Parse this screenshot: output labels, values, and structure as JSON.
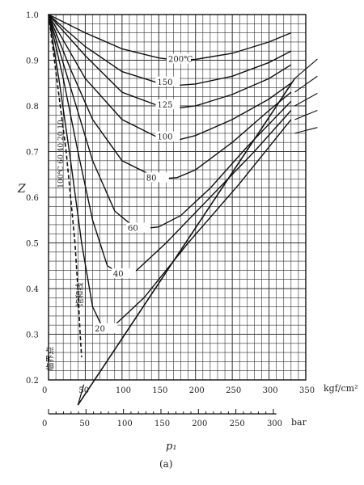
{
  "chart_data": {
    "type": "line",
    "ylabel": "Z",
    "xunit_top": "kgf/cm²",
    "xunit_bottom": "bar",
    "xlabel": "p₁",
    "caption": "(a)",
    "xlim": [
      0,
      350
    ],
    "ylim": [
      0.2,
      1.0
    ],
    "x_ticks_kgf": [
      "0",
      "50",
      "100",
      "150",
      "200",
      "250",
      "300",
      "350"
    ],
    "x_ticks_bar": [
      "0",
      "50",
      "100",
      "150",
      "200",
      "250",
      "300"
    ],
    "y_ticks": [
      "0.2",
      "0.3",
      "0.4",
      "0.5",
      "0.6",
      "0.7",
      "0.8",
      "0.9",
      "1.0"
    ],
    "annotations": [
      "临界点",
      "饱和线"
    ],
    "series": [
      {
        "name": "200℃",
        "points": [
          [
            0,
            1.0
          ],
          [
            50,
            0.96
          ],
          [
            100,
            0.925
          ],
          [
            150,
            0.905
          ],
          [
            175,
            0.9
          ],
          [
            200,
            0.902
          ],
          [
            250,
            0.915
          ],
          [
            300,
            0.94
          ],
          [
            330,
            0.96
          ]
        ]
      },
      {
        "name": "150",
        "points": [
          [
            0,
            1.0
          ],
          [
            50,
            0.93
          ],
          [
            100,
            0.875
          ],
          [
            150,
            0.85
          ],
          [
            175,
            0.845
          ],
          [
            200,
            0.848
          ],
          [
            250,
            0.865
          ],
          [
            300,
            0.895
          ],
          [
            330,
            0.92
          ]
        ]
      },
      {
        "name": "125",
        "points": [
          [
            0,
            1.0
          ],
          [
            50,
            0.91
          ],
          [
            100,
            0.83
          ],
          [
            150,
            0.8
          ],
          [
            175,
            0.795
          ],
          [
            200,
            0.8
          ],
          [
            250,
            0.825
          ],
          [
            300,
            0.86
          ],
          [
            330,
            0.89
          ]
        ]
      },
      {
        "name": "100",
        "points": [
          [
            0,
            1.0
          ],
          [
            50,
            0.86
          ],
          [
            100,
            0.77
          ],
          [
            150,
            0.73
          ],
          [
            175,
            0.725
          ],
          [
            200,
            0.735
          ],
          [
            250,
            0.77
          ],
          [
            300,
            0.815
          ],
          [
            330,
            0.85
          ]
        ]
      },
      {
        "name": "80",
        "points": [
          [
            0,
            1.0
          ],
          [
            30,
            0.88
          ],
          [
            60,
            0.77
          ],
          [
            100,
            0.68
          ],
          [
            150,
            0.64
          ],
          [
            175,
            0.643
          ],
          [
            200,
            0.66
          ],
          [
            250,
            0.72
          ],
          [
            300,
            0.79
          ],
          [
            330,
            0.83
          ]
        ]
      },
      {
        "name": "60",
        "points": [
          [
            0,
            1.0
          ],
          [
            30,
            0.84
          ],
          [
            60,
            0.68
          ],
          [
            90,
            0.57
          ],
          [
            120,
            0.53
          ],
          [
            150,
            0.535
          ],
          [
            180,
            0.56
          ],
          [
            220,
            0.62
          ],
          [
            270,
            0.71
          ],
          [
            330,
            0.81
          ]
        ]
      },
      {
        "name": "40",
        "points": [
          [
            0,
            1.0
          ],
          [
            20,
            0.86
          ],
          [
            40,
            0.7
          ],
          [
            60,
            0.55
          ],
          [
            80,
            0.45
          ],
          [
            100,
            0.43
          ],
          [
            120,
            0.44
          ],
          [
            160,
            0.5
          ],
          [
            220,
            0.6
          ],
          [
            280,
            0.7
          ],
          [
            330,
            0.79
          ]
        ]
      },
      {
        "name": "20",
        "points": [
          [
            0,
            1.0
          ],
          [
            15,
            0.85
          ],
          [
            30,
            0.68
          ],
          [
            45,
            0.5
          ],
          [
            60,
            0.36
          ],
          [
            75,
            0.31
          ],
          [
            90,
            0.32
          ],
          [
            130,
            0.38
          ],
          [
            190,
            0.5
          ],
          [
            260,
            0.63
          ],
          [
            330,
            0.77
          ]
        ]
      }
    ],
    "saturation_line": [
      [
        0,
        1.0
      ],
      [
        8,
        0.9
      ],
      [
        16,
        0.8
      ],
      [
        24,
        0.7
      ],
      [
        30,
        0.6
      ],
      [
        36,
        0.5
      ],
      [
        40,
        0.4
      ],
      [
        43,
        0.3
      ],
      [
        45,
        0.25
      ]
    ],
    "isotherm_labels": [
      "100℃",
      "60",
      "40",
      "20",
      "10"
    ],
    "critical_line": [
      [
        40,
        0.145
      ],
      [
        335,
        0.86
      ]
    ]
  }
}
